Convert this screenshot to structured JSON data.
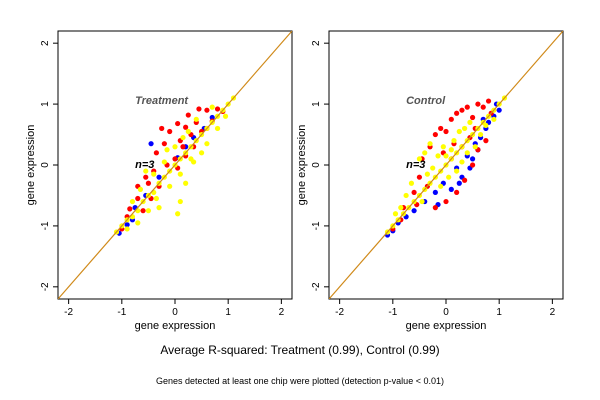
{
  "figure": {
    "summary": "Average R-squared: Treatment (0.99), Control (0.99)",
    "footnote": "Genes detected at least one chip were plotted (detection p-value < 0.01)"
  },
  "chart_data": [
    {
      "type": "scatter",
      "title": "Treatment",
      "annotation": "n=3",
      "xlabel": "gene expression",
      "ylabel": "gene expression",
      "xlim": [
        -2.2,
        2.2
      ],
      "ylim": [
        -2.2,
        2.2
      ],
      "xticks": [
        -2,
        -1,
        0,
        1,
        2
      ],
      "yticks": [
        -2,
        -1,
        0,
        1,
        2
      ],
      "reference_line": {
        "slope": 1,
        "intercept": 0,
        "color": "#d08a1a"
      },
      "grid": false,
      "legend": "none",
      "series": [
        {
          "color": "#0000ff",
          "points": [
            [
              -1.05,
              -1.12
            ],
            [
              -0.9,
              -0.98
            ],
            [
              -0.8,
              -0.9
            ],
            [
              -0.75,
              -0.7
            ],
            [
              -0.3,
              -0.2
            ],
            [
              0.05,
              0.12
            ],
            [
              0.2,
              0.3
            ],
            [
              0.35,
              0.45
            ],
            [
              0.55,
              0.6
            ],
            [
              -0.45,
              0.35
            ],
            [
              -0.55,
              -0.5
            ],
            [
              0.7,
              0.78
            ]
          ]
        },
        {
          "color": "#ff0000",
          "points": [
            [
              -1.0,
              -1.05
            ],
            [
              -0.9,
              -0.85
            ],
            [
              -0.85,
              -0.72
            ],
            [
              -0.7,
              -0.55
            ],
            [
              -0.6,
              -0.75
            ],
            [
              -0.5,
              -0.3
            ],
            [
              -0.4,
              -0.1
            ],
            [
              -0.35,
              0.2
            ],
            [
              -0.3,
              -0.35
            ],
            [
              -0.2,
              0.35
            ],
            [
              -0.1,
              0.55
            ],
            [
              0.0,
              0.1
            ],
            [
              0.05,
              0.68
            ],
            [
              0.1,
              0.4
            ],
            [
              0.15,
              0.3
            ],
            [
              0.2,
              0.62
            ],
            [
              0.25,
              0.82
            ],
            [
              0.3,
              0.5
            ],
            [
              0.4,
              0.7
            ],
            [
              0.45,
              0.92
            ],
            [
              0.5,
              0.55
            ],
            [
              0.6,
              0.9
            ],
            [
              0.7,
              0.72
            ],
            [
              0.8,
              0.92
            ],
            [
              0.9,
              0.88
            ],
            [
              -0.25,
              0.6
            ],
            [
              -0.15,
              0.0
            ],
            [
              0.05,
              -0.05
            ],
            [
              0.2,
              0.15
            ],
            [
              -0.55,
              -0.2
            ],
            [
              -0.45,
              -0.55
            ],
            [
              0.35,
              0.3
            ],
            [
              0.6,
              0.6
            ],
            [
              -0.7,
              -0.35
            ]
          ]
        },
        {
          "color": "#ffff00",
          "points": [
            [
              -1.1,
              -1.1
            ],
            [
              -1.0,
              -1.0
            ],
            [
              -0.9,
              -0.9
            ],
            [
              -0.8,
              -0.85
            ],
            [
              -0.7,
              -0.75
            ],
            [
              -0.6,
              -0.6
            ],
            [
              -0.5,
              -0.5
            ],
            [
              -0.4,
              -0.45
            ],
            [
              -0.3,
              -0.3
            ],
            [
              -0.2,
              -0.2
            ],
            [
              -0.1,
              -0.1
            ],
            [
              0.0,
              0.0
            ],
            [
              0.1,
              0.1
            ],
            [
              0.2,
              0.2
            ],
            [
              0.3,
              0.3
            ],
            [
              0.4,
              0.4
            ],
            [
              0.5,
              0.5
            ],
            [
              0.6,
              0.6
            ],
            [
              0.7,
              0.7
            ],
            [
              0.8,
              0.8
            ],
            [
              0.9,
              0.9
            ],
            [
              1.0,
              1.0
            ],
            [
              1.1,
              1.1
            ],
            [
              0.05,
              -0.8
            ],
            [
              0.1,
              -0.6
            ],
            [
              -0.3,
              -0.7
            ],
            [
              -0.5,
              -0.75
            ],
            [
              -0.55,
              -0.1
            ],
            [
              0.2,
              -0.3
            ],
            [
              0.35,
              0.05
            ],
            [
              0.5,
              0.2
            ],
            [
              -0.15,
              0.25
            ],
            [
              0.25,
              0.55
            ],
            [
              0.4,
              0.75
            ],
            [
              0.7,
              0.95
            ],
            [
              -0.8,
              -0.6
            ],
            [
              -0.65,
              -0.4
            ],
            [
              -0.4,
              -0.15
            ],
            [
              -0.2,
              0.05
            ],
            [
              0.0,
              0.3
            ],
            [
              0.15,
              0.45
            ],
            [
              0.6,
              0.35
            ],
            [
              0.8,
              0.6
            ],
            [
              0.95,
              0.8
            ],
            [
              -0.9,
              -1.05
            ],
            [
              -0.7,
              -0.95
            ],
            [
              -0.35,
              -0.55
            ],
            [
              -0.1,
              -0.35
            ],
            [
              0.1,
              -0.15
            ],
            [
              0.3,
              0.1
            ]
          ]
        }
      ]
    },
    {
      "type": "scatter",
      "title": "Control",
      "annotation": "n=3",
      "xlabel": "gene expression",
      "ylabel": "gene expression",
      "xlim": [
        -2.2,
        2.2
      ],
      "ylim": [
        -2.2,
        2.2
      ],
      "xticks": [
        -2,
        -1,
        0,
        1,
        2
      ],
      "yticks": [
        -2,
        -1,
        0,
        1,
        2
      ],
      "reference_line": {
        "slope": 1,
        "intercept": 0,
        "color": "#d08a1a"
      },
      "grid": false,
      "legend": "none",
      "series": [
        {
          "color": "#0000ff",
          "points": [
            [
              -1.1,
              -1.15
            ],
            [
              -1.0,
              -1.08
            ],
            [
              -0.9,
              -0.95
            ],
            [
              -0.75,
              -0.85
            ],
            [
              -0.6,
              -0.75
            ],
            [
              -0.4,
              -0.6
            ],
            [
              -0.2,
              -0.45
            ],
            [
              -0.05,
              -0.3
            ],
            [
              0.1,
              -0.4
            ],
            [
              0.2,
              -0.05
            ],
            [
              0.3,
              -0.2
            ],
            [
              0.4,
              0.15
            ],
            [
              0.5,
              0.1
            ],
            [
              0.55,
              0.35
            ],
            [
              0.65,
              0.45
            ],
            [
              0.75,
              0.6
            ],
            [
              0.8,
              0.7
            ],
            [
              0.9,
              0.8
            ],
            [
              1.0,
              0.9
            ],
            [
              0.6,
              0.25
            ],
            [
              0.45,
              -0.05
            ],
            [
              0.25,
              -0.3
            ],
            [
              -0.15,
              -0.65
            ],
            [
              0.95,
              1.0
            ],
            [
              0.7,
              0.75
            ]
          ]
        },
        {
          "color": "#ff0000",
          "points": [
            [
              -1.0,
              -1.05
            ],
            [
              -0.85,
              -0.9
            ],
            [
              -0.8,
              -0.7
            ],
            [
              -0.6,
              -0.45
            ],
            [
              -0.5,
              -0.2
            ],
            [
              -0.45,
              0.1
            ],
            [
              -0.3,
              0.3
            ],
            [
              -0.2,
              0.5
            ],
            [
              -0.1,
              0.6
            ],
            [
              0.0,
              0.55
            ],
            [
              0.1,
              0.75
            ],
            [
              0.2,
              0.85
            ],
            [
              0.3,
              0.9
            ],
            [
              0.4,
              0.95
            ],
            [
              0.5,
              0.78
            ],
            [
              0.6,
              1.0
            ],
            [
              0.7,
              0.95
            ],
            [
              0.8,
              1.05
            ],
            [
              0.35,
              -0.25
            ],
            [
              0.5,
              0.0
            ],
            [
              0.6,
              0.25
            ],
            [
              0.75,
              0.4
            ],
            [
              0.2,
              -0.45
            ],
            [
              0.0,
              -0.6
            ],
            [
              -0.2,
              -0.7
            ],
            [
              0.1,
              0.1
            ],
            [
              0.3,
              0.3
            ],
            [
              0.55,
              0.6
            ],
            [
              -0.35,
              -0.35
            ],
            [
              -0.55,
              -0.65
            ],
            [
              0.45,
              0.45
            ],
            [
              0.85,
              0.85
            ],
            [
              0.15,
              0.35
            ],
            [
              -0.05,
              0.2
            ]
          ]
        },
        {
          "color": "#ffff00",
          "points": [
            [
              -1.1,
              -1.1
            ],
            [
              -1.0,
              -1.0
            ],
            [
              -0.9,
              -0.9
            ],
            [
              -0.8,
              -0.8
            ],
            [
              -0.7,
              -0.7
            ],
            [
              -0.6,
              -0.6
            ],
            [
              -0.5,
              -0.5
            ],
            [
              -0.4,
              -0.4
            ],
            [
              -0.3,
              -0.3
            ],
            [
              -0.2,
              -0.2
            ],
            [
              -0.1,
              -0.1
            ],
            [
              0.0,
              0.0
            ],
            [
              0.1,
              0.1
            ],
            [
              0.2,
              0.2
            ],
            [
              0.3,
              0.3
            ],
            [
              0.4,
              0.4
            ],
            [
              0.5,
              0.5
            ],
            [
              0.6,
              0.6
            ],
            [
              0.7,
              0.7
            ],
            [
              0.8,
              0.8
            ],
            [
              0.9,
              0.9
            ],
            [
              1.0,
              1.0
            ],
            [
              1.1,
              1.1
            ],
            [
              -0.5,
              0.1
            ],
            [
              -0.4,
              0.2
            ],
            [
              -0.3,
              0.35
            ],
            [
              -0.25,
              -0.05
            ],
            [
              -0.15,
              0.15
            ],
            [
              -0.05,
              0.3
            ],
            [
              -0.75,
              -0.5
            ],
            [
              -0.65,
              -0.3
            ],
            [
              -0.85,
              -0.7
            ],
            [
              0.15,
              0.4
            ],
            [
              0.25,
              0.55
            ],
            [
              0.35,
              0.6
            ],
            [
              0.45,
              0.7
            ],
            [
              0.2,
              -0.1
            ],
            [
              0.05,
              -0.2
            ],
            [
              -0.1,
              -0.35
            ],
            [
              0.55,
              0.3
            ],
            [
              0.65,
              0.5
            ],
            [
              0.75,
              0.65
            ],
            [
              -0.45,
              -0.6
            ],
            [
              -0.35,
              -0.15
            ],
            [
              0.1,
              0.25
            ],
            [
              0.9,
              0.75
            ],
            [
              -0.95,
              -0.8
            ],
            [
              0.3,
              0.05
            ],
            [
              0.4,
              0.2
            ],
            [
              0.0,
              0.15
            ]
          ]
        }
      ]
    }
  ]
}
